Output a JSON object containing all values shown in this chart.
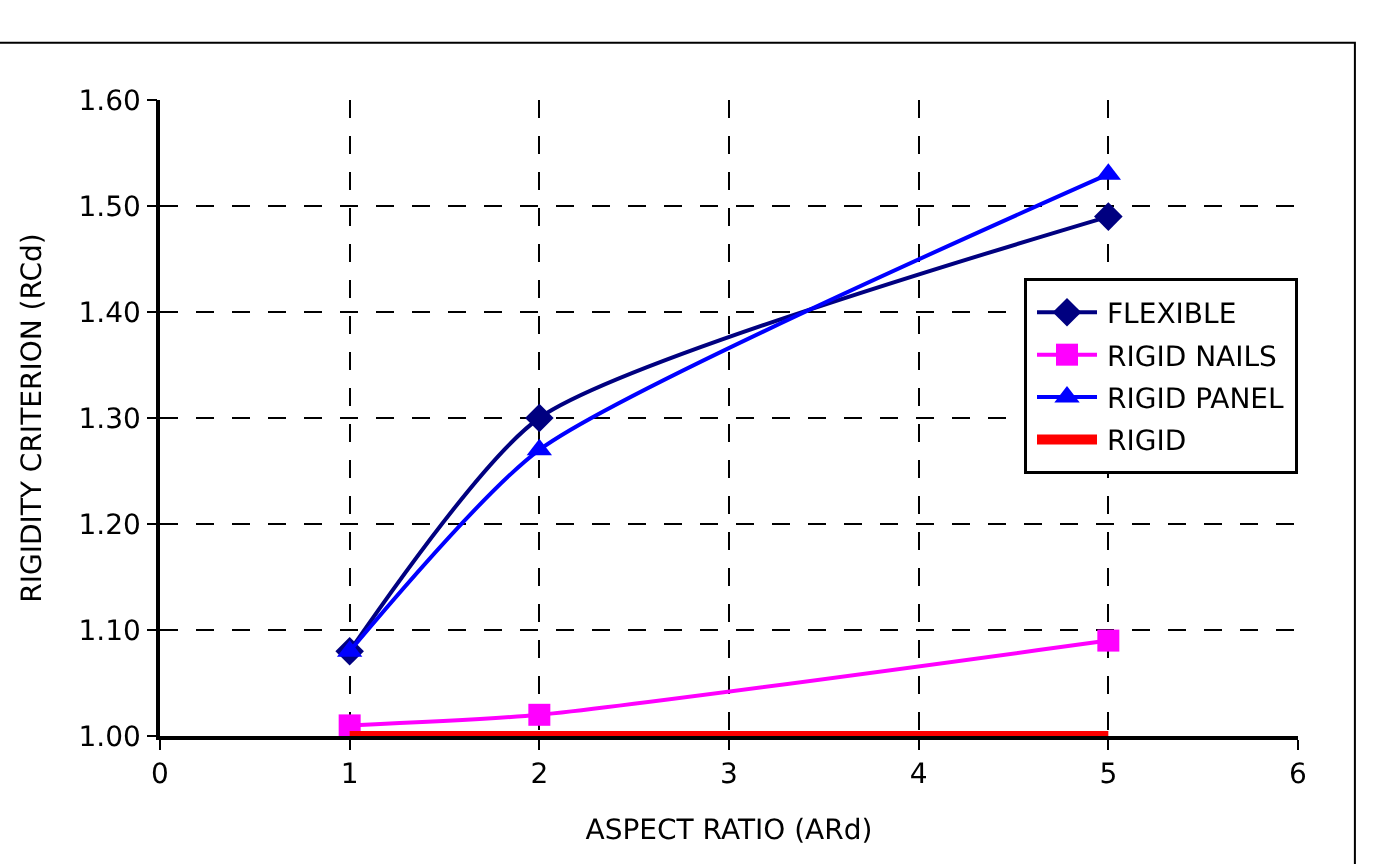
{
  "chart_data": {
    "type": "line",
    "xlabel": "ASPECT RATIO (ARd)",
    "ylabel": "RIGIDITY CRITERION (RCd)",
    "xlim": [
      0,
      6
    ],
    "xticks": [
      0,
      1,
      2,
      3,
      4,
      5,
      6
    ],
    "ylim": [
      1.0,
      1.6
    ],
    "yticks": [
      {
        "value": 1.0,
        "label": "1.00"
      },
      {
        "value": 1.1,
        "label": "1.10"
      },
      {
        "value": 1.2,
        "label": "1.20"
      },
      {
        "value": 1.3,
        "label": "1.30"
      },
      {
        "value": 1.4,
        "label": "1.40"
      },
      {
        "value": 1.5,
        "label": "1.50"
      },
      {
        "value": 1.6,
        "label": "1.60"
      }
    ],
    "grid": true,
    "legend": "right",
    "line_style": "solid",
    "series": [
      {
        "name": "FLEXIBLE",
        "color": "#000080",
        "marker": "diamond",
        "x": [
          1,
          2,
          5
        ],
        "values": [
          1.08,
          1.3,
          1.49
        ]
      },
      {
        "name": "RIGID NAILS",
        "color": "#ff00ff",
        "marker": "square",
        "x": [
          1,
          2,
          5
        ],
        "values": [
          1.01,
          1.02,
          1.09
        ]
      },
      {
        "name": "RIGID PANEL",
        "color": "#0000ff",
        "marker": "triangle",
        "x": [
          1,
          2,
          5
        ],
        "values": [
          1.08,
          1.27,
          1.53
        ]
      },
      {
        "name": "RIGID",
        "color": "#ff0000",
        "marker": "none",
        "x": [
          1,
          5
        ],
        "values": [
          1.0,
          1.0
        ]
      }
    ]
  }
}
